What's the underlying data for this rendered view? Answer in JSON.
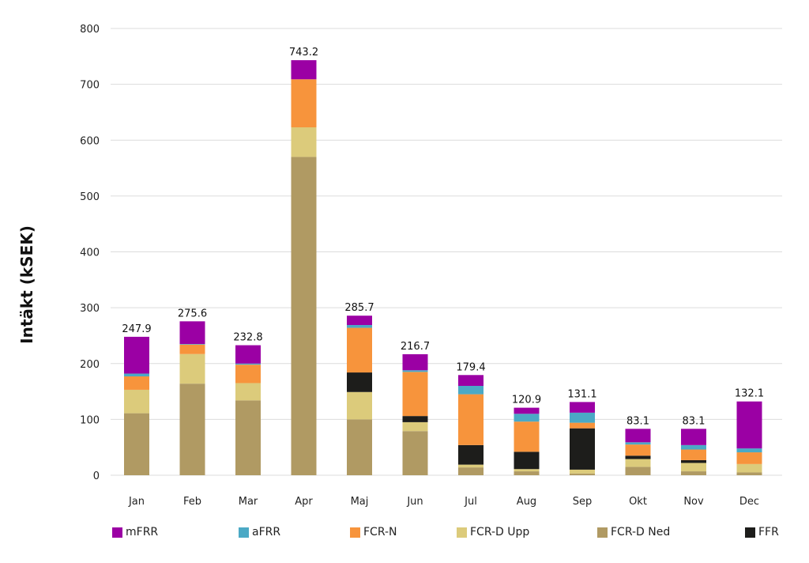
{
  "chart_data": {
    "type": "bar",
    "stacked": true,
    "ylabel": "Intäkt (kSEK)",
    "ylim": [
      0,
      800
    ],
    "yticks": [
      "0",
      "100",
      "200",
      "300",
      "400",
      "500",
      "600",
      "700",
      "800"
    ],
    "grid": true,
    "legend_position": "bottom",
    "categories": [
      "Jan",
      "Feb",
      "Mar",
      "Apr",
      "Maj",
      "Jun",
      "Jul",
      "Aug",
      "Sep",
      "Okt",
      "Nov",
      "Dec"
    ],
    "totals": [
      "247.9",
      "275.6",
      "232.8",
      "743.2",
      "285.7",
      "216.7",
      "179.4",
      "120.9",
      "131.1",
      "83.1",
      "83.1",
      "132.1"
    ],
    "series": [
      {
        "name": "FCR-D Ned",
        "color": "#B09A63",
        "values": [
          111,
          164,
          134,
          570,
          100,
          79,
          14,
          7,
          3,
          15,
          7,
          5
        ]
      },
      {
        "name": "FCR-D Upp",
        "color": "#DCCB7B",
        "values": [
          42,
          53,
          31,
          53,
          49,
          16,
          5,
          4,
          7,
          14,
          15,
          15
        ]
      },
      {
        "name": "FFR",
        "color": "#1D1D1B",
        "values": [
          0,
          0,
          0,
          0,
          35,
          11,
          35,
          31,
          74,
          6,
          5,
          0
        ]
      },
      {
        "name": "FCR-N",
        "color": "#F7943C",
        "values": [
          24,
          17,
          33,
          86,
          80,
          79,
          91,
          54,
          10,
          20,
          19,
          21
        ]
      },
      {
        "name": "aFRR",
        "color": "#4BA9C5",
        "values": [
          5,
          1,
          2,
          0,
          5,
          3,
          15,
          14,
          18,
          4,
          8,
          7
        ]
      },
      {
        "name": "mFRR",
        "color": "#9B00A4",
        "values": [
          65.9,
          40.6,
          32.8,
          34.2,
          16.7,
          28.7,
          19.4,
          10.9,
          19.1,
          24.1,
          29.1,
          84.1
        ]
      }
    ],
    "legend_order": [
      "mFRR",
      "aFRR",
      "FCR-N",
      "FCR-D Upp",
      "FCR-D Ned",
      "FFR"
    ]
  }
}
